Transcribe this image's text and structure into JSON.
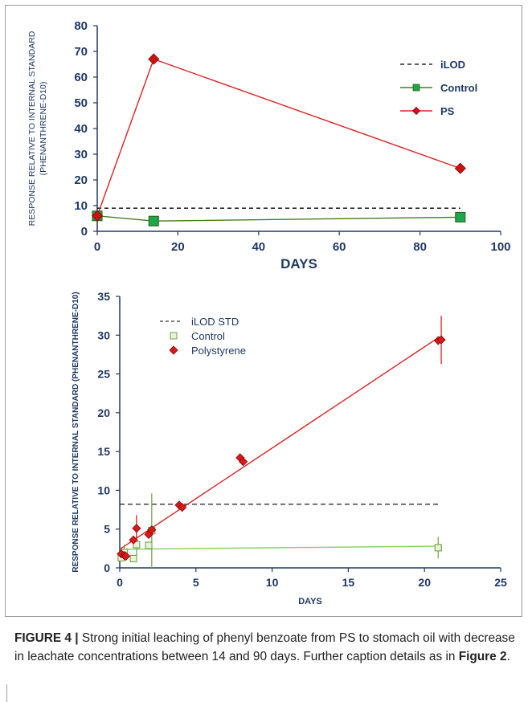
{
  "chart_data": [
    {
      "type": "line",
      "xlabel": "DAYS",
      "ylabel_line1": "RESPONSE RELATIVE TO INTERNAL STANDARD",
      "ylabel_line2": "(PHENANTHRENE-D10)",
      "xlim": [
        0,
        100
      ],
      "ylim": [
        0,
        80
      ],
      "xticks": [
        "0",
        "20",
        "40",
        "60",
        "80",
        "100"
      ],
      "yticks": [
        "0",
        "10",
        "20",
        "30",
        "40",
        "50",
        "60",
        "70",
        "80"
      ],
      "legend_position": "top-right",
      "grid": false,
      "iLOD": 9,
      "series": [
        {
          "name": "iLOD",
          "style": "dashed",
          "color": "#000000",
          "x": [
            0,
            90
          ],
          "y": [
            9,
            9
          ]
        },
        {
          "name": "Control",
          "marker": "square",
          "color": "#4a7a22",
          "marker_color": "#1aa84a",
          "x": [
            0,
            14,
            90
          ],
          "y": [
            6,
            4,
            5.5
          ]
        },
        {
          "name": "PS",
          "marker": "diamond",
          "color": "#e02020",
          "marker_color": "#cc1111",
          "x": [
            0,
            14,
            90
          ],
          "y": [
            6,
            67,
            24.5
          ]
        }
      ]
    },
    {
      "type": "scatter",
      "xlabel": "DAYS",
      "ylabel": "RESPONSE RELATIVE TO INTERNAL STANDARD (PHENANTHRENE-D10)",
      "xlim": [
        0,
        25
      ],
      "ylim": [
        0,
        35
      ],
      "xticks": [
        "0",
        "5",
        "10",
        "15",
        "20",
        "25"
      ],
      "yticks": [
        "0",
        "5",
        "10",
        "15",
        "20",
        "25",
        "30",
        "35"
      ],
      "legend_position": "top-left",
      "grid": false,
      "iLOD_STD": 8.2,
      "series": [
        {
          "name": "iLOD STD",
          "style": "dashed",
          "color": "#000000",
          "x": [
            0,
            21
          ],
          "y": [
            8.2,
            8.2
          ]
        },
        {
          "name": "Control",
          "marker": "square-open",
          "color": "#8fd06a",
          "points": [
            [
              0.1,
              1.3
            ],
            [
              0.3,
              2.0
            ],
            [
              0.9,
              1.2
            ],
            [
              1.1,
              3.0
            ],
            [
              1.9,
              2.9
            ],
            [
              2.1,
              4.8
            ],
            [
              20.9,
              2.6
            ]
          ],
          "error_bars": [
            [
              0.3,
              1.0
            ],
            [
              1.1,
              1.6
            ],
            [
              2.1,
              4.8
            ],
            [
              20.9,
              1.4
            ]
          ],
          "trend": {
            "x": [
              0,
              21
            ],
            "y": [
              2.4,
              2.8
            ]
          }
        },
        {
          "name": "Polystyrene",
          "marker": "diamond",
          "color": "#e02020",
          "points": [
            [
              0.1,
              1.8
            ],
            [
              0.3,
              1.6
            ],
            [
              0.4,
              1.5
            ],
            [
              0.9,
              3.6
            ],
            [
              1.1,
              5.1
            ],
            [
              1.9,
              4.3
            ],
            [
              2.1,
              4.9
            ],
            [
              3.9,
              8.1
            ],
            [
              4.1,
              7.8
            ],
            [
              7.9,
              14.2
            ],
            [
              8.1,
              13.7
            ],
            [
              20.9,
              29.3
            ],
            [
              21.1,
              29.4
            ]
          ],
          "error_bars": [
            [
              1.1,
              1.7
            ],
            [
              21.1,
              3.1
            ]
          ],
          "trend": {
            "x": [
              0,
              21
            ],
            "y": [
              2.4,
              29.8
            ]
          }
        }
      ]
    }
  ],
  "caption": {
    "figure_label": "FIGURE 4 |",
    "text": "Strong initial leaching of phenyl benzoate from PS to stomach oil with decrease in leachate concentrations between 14 and 90 days. Further caption details as in ",
    "ref": "Figure 2",
    "end": "."
  }
}
